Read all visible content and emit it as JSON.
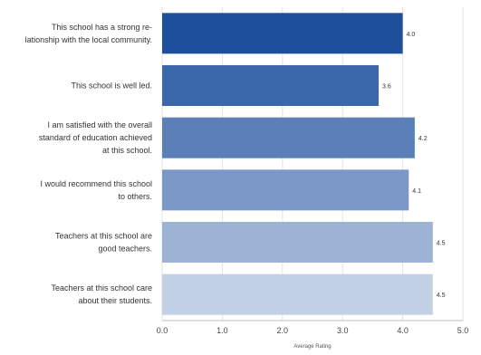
{
  "chart_data": {
    "type": "bar",
    "orientation": "horizontal",
    "categories": [
      [
        "This school has a strong re-",
        "lationship with the local community."
      ],
      [
        "This school is well led."
      ],
      [
        "I am satisfied with the overall",
        "standard of education achieved",
        "at this school."
      ],
      [
        "I would recommend this school",
        "to others."
      ],
      [
        "Teachers at this school are",
        "good teachers."
      ],
      [
        "Teachers at this school care",
        "about their students."
      ]
    ],
    "values": [
      4.0,
      3.6,
      4.2,
      4.1,
      4.5,
      4.5
    ],
    "value_labels": [
      "4.0",
      "3.6",
      "4.2",
      "4.1",
      "4.5",
      "4.5"
    ],
    "bar_colors": [
      "#1e4f9a",
      "#3a68aa",
      "#5b80b8",
      "#7b98c7",
      "#9cb3d6",
      "#c3d1e6"
    ],
    "xlim": [
      0,
      5
    ],
    "xticks": [
      "0.0",
      "1.0",
      "2.0",
      "3.0",
      "4.0",
      "5.0"
    ],
    "xlabel": "Average Rating",
    "grid": "vertical",
    "legend": "none"
  }
}
